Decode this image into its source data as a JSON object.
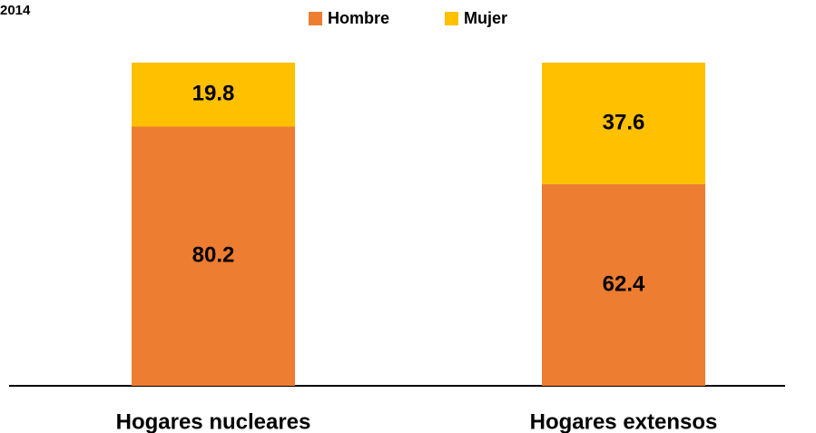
{
  "chart_data": {
    "type": "stacked_bar",
    "title": "2014",
    "categories": [
      "Hogares nucleares",
      "Hogares extensos"
    ],
    "series": [
      {
        "name": "Hombre",
        "color": "#ED7D31",
        "values": [
          80.2,
          62.4
        ]
      },
      {
        "name": "Mujer",
        "color": "#FFC000",
        "values": [
          19.8,
          37.6
        ]
      }
    ],
    "ylim": [
      0,
      100
    ],
    "legend": "top"
  }
}
